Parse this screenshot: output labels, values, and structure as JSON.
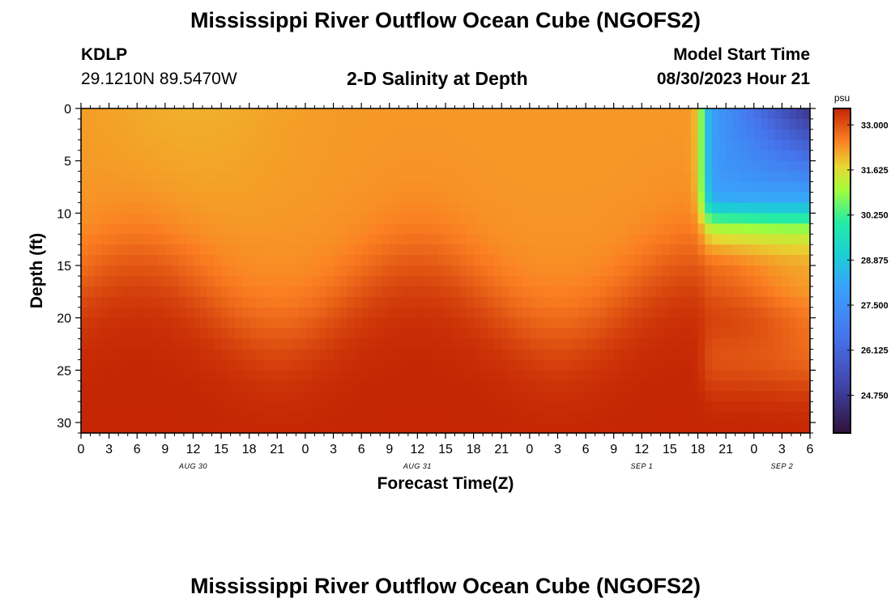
{
  "header": {
    "title": "Mississippi River Outflow Ocean Cube (NGOFS2)",
    "station": "KDLP",
    "coords": "29.1210N  89.5470W",
    "subtitle": "2-D Salinity at Depth",
    "model_start_label": "Model Start Time",
    "model_start_value": "08/30/2023 Hour 21"
  },
  "footer": {
    "title_repeat": "Mississippi River Outflow Ocean Cube (NGOFS2)"
  },
  "chart_data": {
    "type": "heatmap",
    "title": "2-D Salinity at Depth",
    "xlabel": "Forecast Time(Z)",
    "ylabel": "Depth (ft)",
    "x_hours_range": [
      0,
      78
    ],
    "ylim": [
      0,
      31
    ],
    "x_ticks": [
      "0",
      "3",
      "6",
      "9",
      "12",
      "15",
      "18",
      "21",
      "0",
      "3",
      "6",
      "9",
      "12",
      "15",
      "18",
      "21",
      "0",
      "3",
      "6",
      "9",
      "12",
      "15",
      "18",
      "21",
      "0",
      "3",
      "6"
    ],
    "x_tick_hours": [
      0,
      3,
      6,
      9,
      12,
      15,
      18,
      21,
      24,
      27,
      30,
      33,
      36,
      39,
      42,
      45,
      48,
      51,
      54,
      57,
      60,
      63,
      66,
      69,
      72,
      75,
      78
    ],
    "date_labels": [
      {
        "text": "AUG 30",
        "hour": 12
      },
      {
        "text": "AUG 31",
        "hour": 36
      },
      {
        "text": "SEP 1",
        "hour": 60
      },
      {
        "text": "SEP 2",
        "hour": 75
      }
    ],
    "y_ticks": [
      "0",
      "5",
      "10",
      "15",
      "20",
      "25",
      "30"
    ],
    "y_tick_values": [
      0,
      5,
      10,
      15,
      20,
      25,
      30
    ],
    "colorbar": {
      "unit": "psu",
      "min": 23.6,
      "max": 33.5,
      "tick_labels": [
        "33.000",
        "31.625",
        "30.250",
        "28.875",
        "27.500",
        "26.125",
        "24.750"
      ],
      "tick_values": [
        33.0,
        31.625,
        30.25,
        28.875,
        27.5,
        26.125,
        24.75
      ]
    },
    "salinity_profile_examples": [
      {
        "hour": 0,
        "depth_0ft": 32.3,
        "depth_15ft": 32.2,
        "depth_30ft": 33.4
      },
      {
        "hour": 21,
        "depth_0ft": 32.0,
        "depth_15ft": 32.6,
        "depth_30ft": 33.5
      },
      {
        "hour": 51,
        "depth_0ft": 32.4,
        "depth_15ft": 32.8,
        "depth_30ft": 33.4
      },
      {
        "hour": 75,
        "depth_0ft": 24.3,
        "depth_15ft": 31.8,
        "depth_30ft": 33.2
      }
    ]
  }
}
